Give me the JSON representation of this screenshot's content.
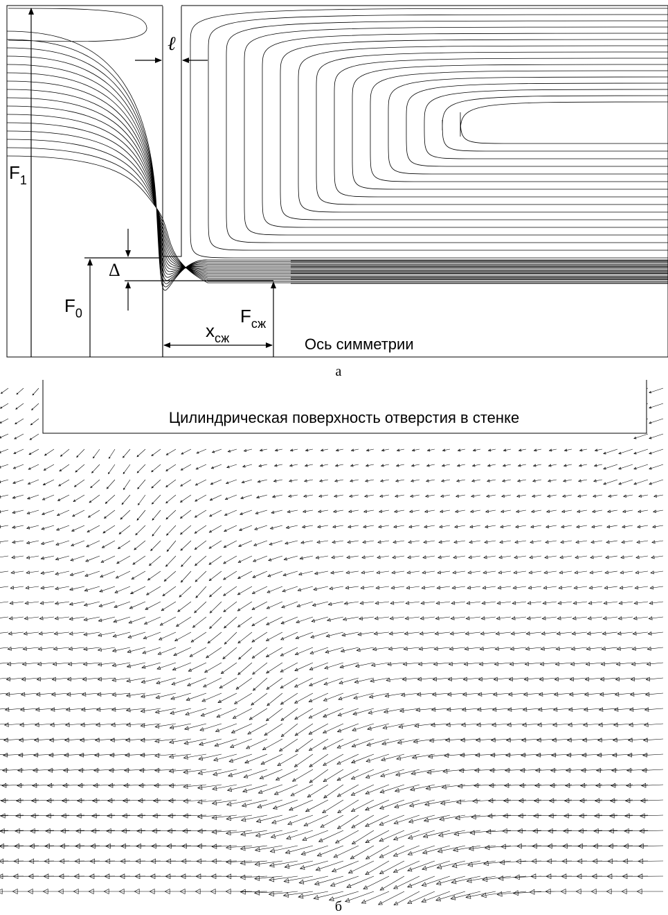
{
  "panel_a": {
    "f1": {
      "main": "F",
      "sub": "1"
    },
    "ell": "ℓ",
    "delta": "Δ",
    "f0": {
      "main": "F",
      "sub": "0"
    },
    "fszh": {
      "main": "F",
      "sub": "сж"
    },
    "xszh": {
      "main": "x",
      "sub": "сж"
    },
    "axis_label": "Ось симметрии",
    "caption": "а"
  },
  "panel_b": {
    "title": "Цилиндрическая поверхность отверстия в стенке",
    "caption": "б"
  }
}
